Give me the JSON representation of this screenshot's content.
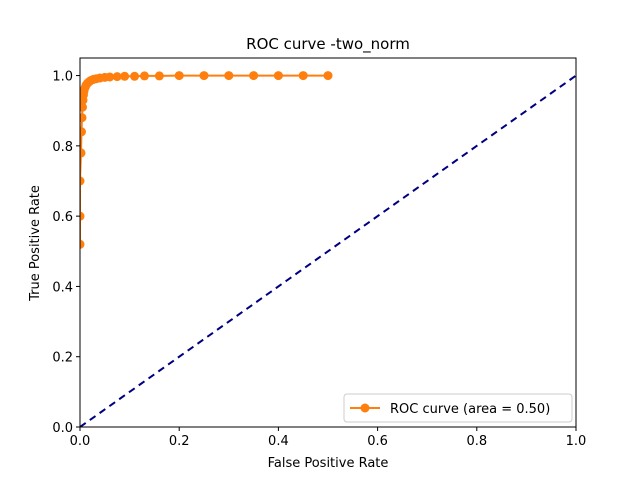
{
  "chart_data": {
    "type": "line",
    "title": "ROC curve -two_norm",
    "xlabel": "False Positive Rate",
    "ylabel": "True Positive Rate",
    "xlim": [
      0.0,
      1.0
    ],
    "ylim": [
      0.0,
      1.05
    ],
    "xticks": [
      "0.0",
      "0.2",
      "0.4",
      "0.6",
      "0.8",
      "1.0"
    ],
    "yticks": [
      "0.0",
      "0.2",
      "0.4",
      "0.6",
      "0.8",
      "1.0"
    ],
    "legend_position": "lower-right",
    "series": [
      {
        "name": "ROC curve (area = 0.50)",
        "color": "#ff7f0e",
        "marker": "circle",
        "x": [
          0.0,
          0.0,
          0.0,
          0.002,
          0.003,
          0.004,
          0.005,
          0.006,
          0.007,
          0.008,
          0.01,
          0.012,
          0.015,
          0.018,
          0.022,
          0.027,
          0.033,
          0.04,
          0.05,
          0.06,
          0.075,
          0.09,
          0.11,
          0.13,
          0.16,
          0.2,
          0.25,
          0.3,
          0.35,
          0.4,
          0.45,
          0.5
        ],
        "y": [
          0.52,
          0.6,
          0.7,
          0.78,
          0.84,
          0.88,
          0.91,
          0.93,
          0.945,
          0.955,
          0.965,
          0.972,
          0.978,
          0.982,
          0.986,
          0.989,
          0.991,
          0.993,
          0.995,
          0.996,
          0.997,
          0.998,
          0.998,
          0.999,
          0.999,
          1.0,
          1.0,
          1.0,
          1.0,
          1.0,
          1.0,
          1.0
        ]
      },
      {
        "name": "",
        "color": "#000080",
        "style": "dashed",
        "x": [
          0.0,
          1.0
        ],
        "y": [
          0.0,
          1.0
        ]
      }
    ]
  }
}
